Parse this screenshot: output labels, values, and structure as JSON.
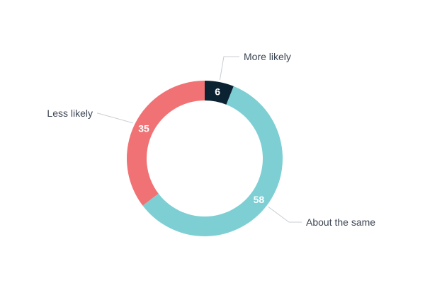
{
  "chart_data": {
    "type": "pie",
    "variant": "donut",
    "title": "",
    "slices": [
      {
        "name": "More likely",
        "value": 6,
        "label": "6",
        "color": "#0b2233",
        "label_color": "#ffffff"
      },
      {
        "name": "About the same",
        "value": 58,
        "label": "58",
        "color": "#7dcfd4",
        "label_color": "#ffffff"
      },
      {
        "name": "Less likely",
        "value": 35,
        "label": "35",
        "color": "#f07274",
        "label_color": "#ffffff"
      }
    ]
  }
}
